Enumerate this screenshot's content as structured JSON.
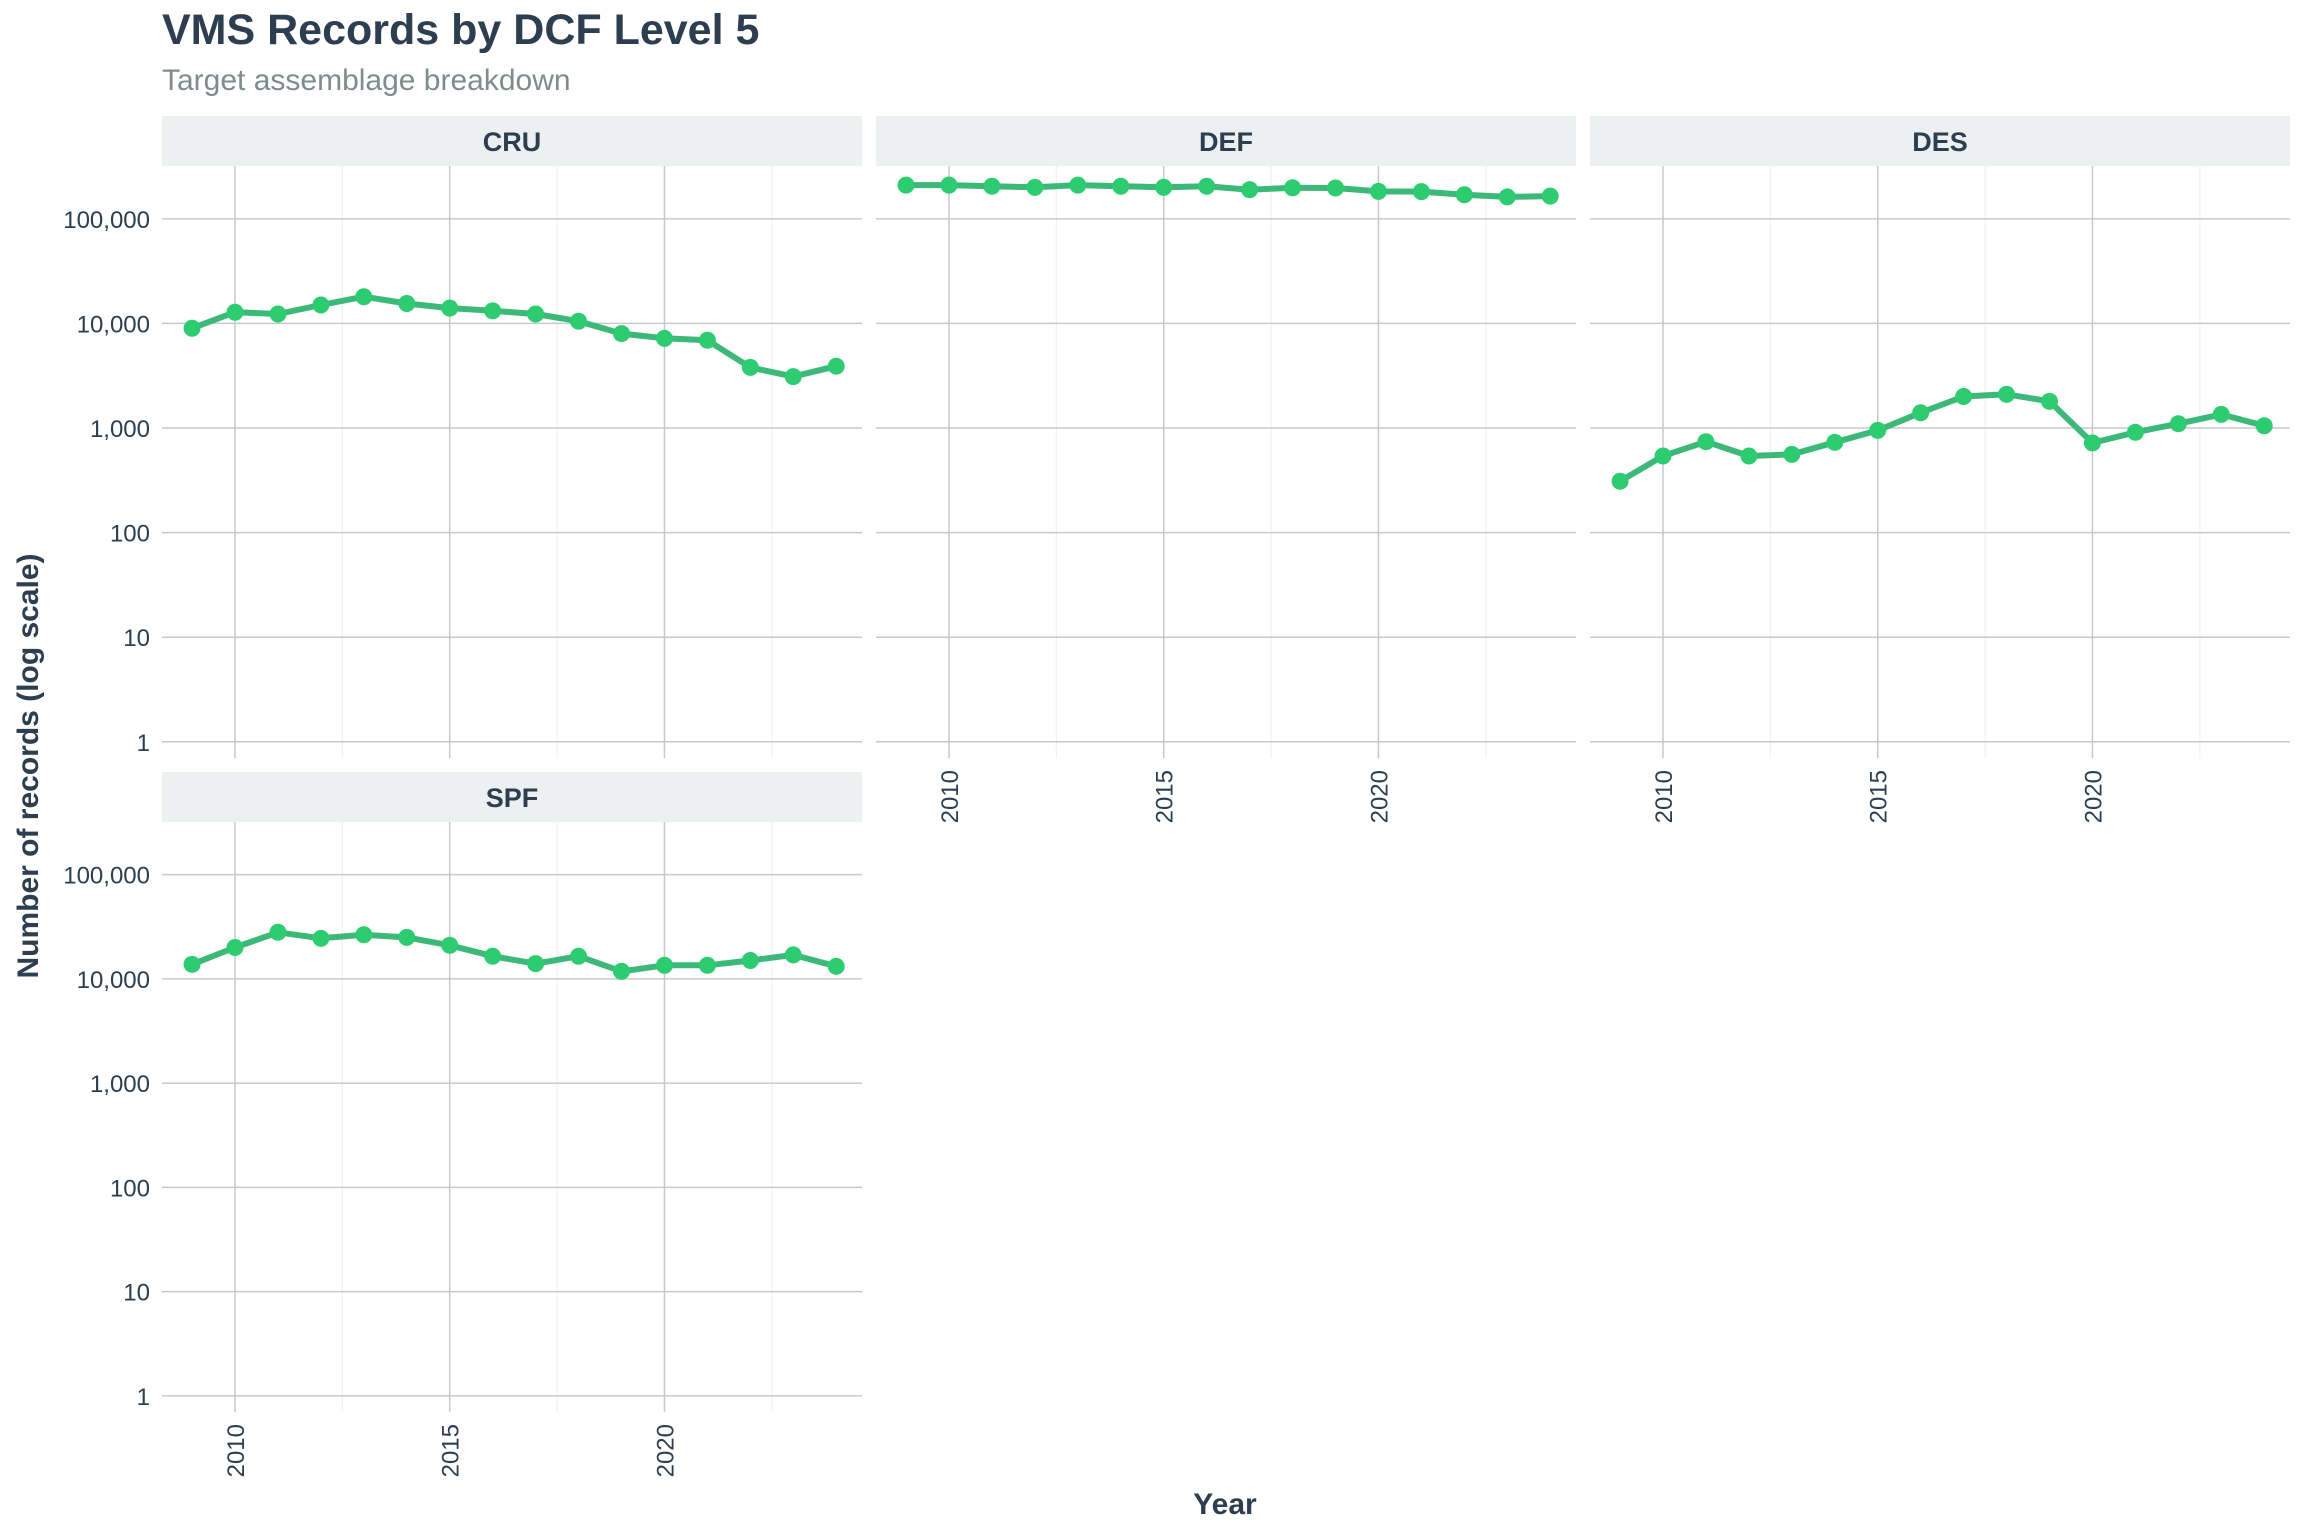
{
  "chart_data": {
    "type": "line",
    "title": "VMS Records by DCF Level 5",
    "subtitle": "Target assemblage breakdown",
    "xlabel": "Year",
    "ylabel": "Number of records (log scale)",
    "y_scale": "log10",
    "ylim": [
      0.7,
      320000
    ],
    "xlim": [
      2008.3,
      2024.6
    ],
    "y_ticks": [
      1,
      10,
      100,
      1000,
      10000,
      100000
    ],
    "y_tick_labels": [
      "1",
      "10",
      "100",
      "1,000",
      "10,000",
      "100,000"
    ],
    "x_ticks": [
      2010,
      2015,
      2020
    ],
    "x_tick_labels": [
      "2010",
      "2015",
      "2020"
    ],
    "grid": true,
    "line_color": "#3cb878",
    "point_color": "#2ecc71",
    "strip_fill": "#ecf0f1",
    "x": [
      2009,
      2010,
      2011,
      2012,
      2013,
      2014,
      2015,
      2016,
      2017,
      2018,
      2019,
      2020,
      2021,
      2022,
      2023,
      2024
    ],
    "panels": [
      {
        "name": "CRU",
        "values": [
          9000,
          12800,
          12300,
          15000,
          18000,
          15500,
          14000,
          13200,
          12300,
          10500,
          8000,
          7200,
          6900,
          3800,
          3100,
          3900
        ]
      },
      {
        "name": "DEF",
        "values": [
          210000,
          210000,
          205000,
          200000,
          210000,
          205000,
          200000,
          205000,
          190000,
          198000,
          197000,
          183000,
          182000,
          170000,
          162000,
          165000
        ]
      },
      {
        "name": "DES",
        "values": [
          310,
          540,
          740,
          540,
          560,
          730,
          950,
          1400,
          2000,
          2100,
          1800,
          720,
          910,
          1100,
          1350,
          1050
        ]
      },
      {
        "name": "SPF",
        "values": [
          13800,
          20000,
          28000,
          24500,
          26500,
          25000,
          21000,
          16500,
          14000,
          16500,
          11800,
          13500,
          13500,
          15000,
          17000,
          13200
        ]
      }
    ]
  }
}
